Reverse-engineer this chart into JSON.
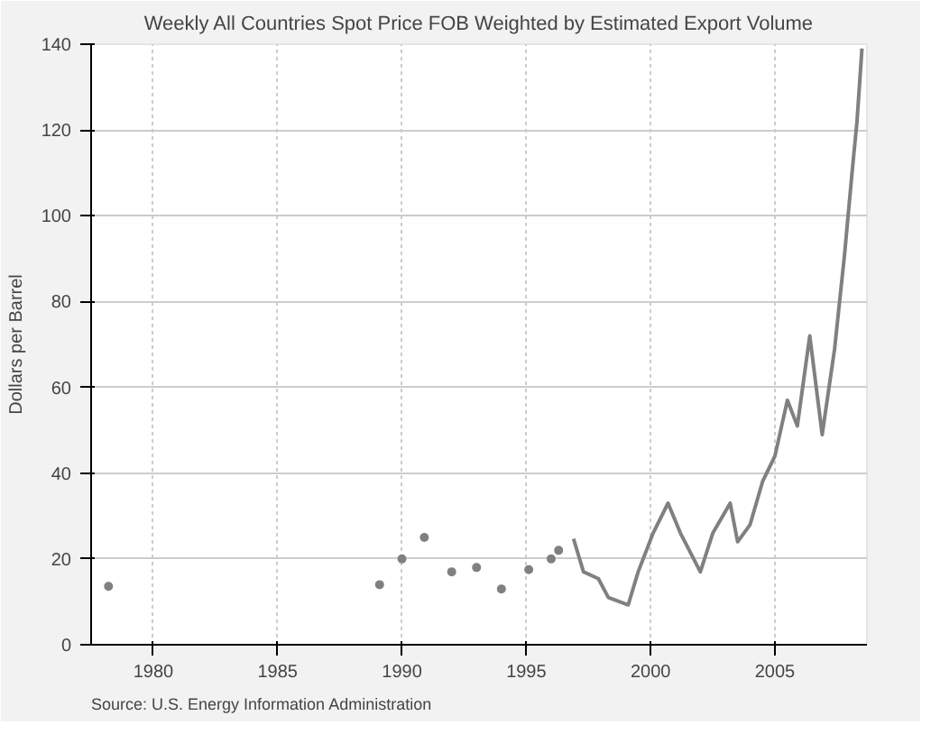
{
  "chart_data": {
    "type": "line",
    "title": "Weekly All Countries Spot Price FOB Weighted by Estimated Export Volume",
    "ylabel": "Dollars per Barrel",
    "annotations": [
      "Source: U.S. Energy Information Administration"
    ],
    "xlim": [
      1977.5,
      2008.7
    ],
    "xticks": [
      1980,
      1985,
      1990,
      1995,
      2000,
      2005
    ],
    "ylim": [
      0,
      140
    ],
    "yticks": [
      0,
      20,
      40,
      60,
      80,
      100,
      120,
      140
    ],
    "grid": true,
    "series": [
      {
        "type": "scatter",
        "marker": "circle",
        "color": "#808080",
        "x": [
          1978.2,
          1989.1,
          1990.0,
          1990.9,
          1992.0,
          1993.0,
          1994.0,
          1995.1,
          1996.0,
          1996.3
        ],
        "values": [
          13.6,
          14,
          20,
          25,
          17,
          18,
          13,
          17.5,
          20,
          22
        ]
      },
      {
        "color": "#808080",
        "x": [
          1996.9,
          1997.3,
          1997.9,
          1998.3,
          1999.1,
          1999.5,
          2000.1,
          2000.7,
          2001.2,
          2002.0,
          2002.5,
          2003.2,
          2003.5,
          2004.0,
          2004.5,
          2005.0,
          2005.5,
          2005.9,
          2006.4,
          2006.9,
          2007.4,
          2007.8,
          2008.1,
          2008.3,
          2008.5
        ],
        "values": [
          24.7,
          17,
          15.4,
          11,
          9.3,
          17,
          26,
          33,
          26,
          17,
          26,
          33,
          24,
          28,
          38,
          44,
          57,
          51,
          72,
          49,
          69,
          91,
          110,
          122,
          139
        ]
      }
    ]
  }
}
